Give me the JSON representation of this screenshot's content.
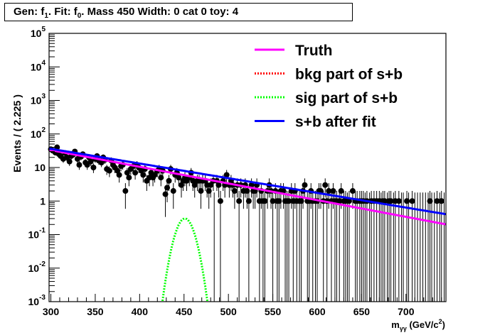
{
  "title": {
    "gen_label": "Gen: f",
    "gen_sub": "1",
    "fit_label": ". Fit: f",
    "fit_sub": "0",
    "rest": ". Mass 450  Width: 0 cat 0  toy: 4"
  },
  "chart_data": {
    "type": "scatter",
    "xlabel_main": "m",
    "xlabel_sub": "γγ",
    "xlabel_unit": " (GeV/c",
    "xlabel_sup": "2",
    "xlabel_close": ")",
    "ylabel": "Events / ( 2.225 )",
    "xlim": [
      298,
      745
    ],
    "ylim": [
      0.001,
      100000
    ],
    "yscale": "log",
    "x_ticks": [
      "300",
      "350",
      "400",
      "450",
      "500",
      "550",
      "600",
      "650",
      "700"
    ],
    "y_ticks": [
      {
        "base": "10",
        "exp": "5"
      },
      {
        "base": "10",
        "exp": "4"
      },
      {
        "base": "10",
        "exp": "3"
      },
      {
        "base": "10",
        "exp": "2"
      },
      {
        "base": "10",
        "exp": ""
      },
      {
        "base": "1",
        "exp": ""
      },
      {
        "base": "10",
        "exp": "-1"
      },
      {
        "base": "10",
        "exp": "-2"
      },
      {
        "base": "10",
        "exp": "-3"
      }
    ],
    "legend_position": "top-right",
    "legend": [
      {
        "label": "Truth",
        "color": "#ff00ff",
        "style": "solid"
      },
      {
        "label": "bkg part of s+b",
        "color": "#ff0000",
        "style": "dotted"
      },
      {
        "label": "sig part of s+b",
        "color": "#00ff00",
        "style": "dotted"
      },
      {
        "label": "s+b after fit",
        "color": "#0000ff",
        "style": "solid"
      }
    ],
    "data_points": [
      [
        300,
        35
      ],
      [
        302,
        32
      ],
      [
        305,
        28
      ],
      [
        307,
        40
      ],
      [
        309,
        25
      ],
      [
        311,
        22
      ],
      [
        314,
        18
      ],
      [
        316,
        27
      ],
      [
        318,
        20
      ],
      [
        321,
        15
      ],
      [
        323,
        22
      ],
      [
        325,
        24
      ],
      [
        327,
        30
      ],
      [
        330,
        18
      ],
      [
        332,
        12
      ],
      [
        334,
        21
      ],
      [
        336,
        25
      ],
      [
        339,
        14
      ],
      [
        341,
        12
      ],
      [
        343,
        20
      ],
      [
        345,
        15
      ],
      [
        348,
        10
      ],
      [
        350,
        18
      ],
      [
        352,
        22
      ],
      [
        354,
        16
      ],
      [
        357,
        14
      ],
      [
        359,
        20
      ],
      [
        361,
        17
      ],
      [
        363,
        9
      ],
      [
        366,
        8
      ],
      [
        368,
        16
      ],
      [
        370,
        12
      ],
      [
        372,
        10
      ],
      [
        375,
        8
      ],
      [
        377,
        6
      ],
      [
        379,
        11
      ],
      [
        381,
        12
      ],
      [
        384,
        2
      ],
      [
        386,
        7
      ],
      [
        388,
        5
      ],
      [
        390,
        9
      ],
      [
        393,
        11
      ],
      [
        395,
        7
      ],
      [
        397,
        12
      ],
      [
        399,
        10
      ],
      [
        402,
        8
      ],
      [
        404,
        6
      ],
      [
        406,
        9
      ],
      [
        408,
        4
      ],
      [
        411,
        5
      ],
      [
        413,
        7
      ],
      [
        415,
        5
      ],
      [
        417,
        6
      ],
      [
        420,
        8
      ],
      [
        422,
        9
      ],
      [
        424,
        5
      ],
      [
        426,
        8
      ],
      [
        429,
        1.6
      ],
      [
        431,
        2.5
      ],
      [
        433,
        4
      ],
      [
        435,
        9
      ],
      [
        438,
        2
      ],
      [
        440,
        6
      ],
      [
        442,
        7
      ],
      [
        444,
        5
      ],
      [
        447,
        3
      ],
      [
        449,
        4
      ],
      [
        451,
        5
      ],
      [
        453,
        4
      ],
      [
        456,
        5
      ],
      [
        458,
        7
      ],
      [
        460,
        4
      ],
      [
        462,
        3
      ],
      [
        465,
        4
      ],
      [
        467,
        4
      ],
      [
        469,
        2
      ],
      [
        471,
        4
      ],
      [
        474,
        4
      ],
      [
        476,
        3
      ],
      [
        478,
        2
      ],
      [
        480,
        3
      ],
      [
        483,
        4
      ],
      [
        487,
        4
      ],
      [
        489,
        3
      ],
      [
        491,
        1
      ],
      [
        494,
        4
      ],
      [
        496,
        3
      ],
      [
        498,
        6
      ],
      [
        501,
        3
      ],
      [
        503,
        4
      ],
      [
        505,
        3
      ],
      [
        507,
        2
      ],
      [
        510,
        3
      ],
      [
        512,
        1
      ],
      [
        514,
        3
      ],
      [
        517,
        2
      ],
      [
        519,
        3
      ],
      [
        521,
        2
      ],
      [
        523,
        1
      ],
      [
        526,
        3
      ],
      [
        528,
        2
      ],
      [
        530,
        2
      ],
      [
        532,
        3
      ],
      [
        535,
        1
      ],
      [
        537,
        2
      ],
      [
        539,
        1
      ],
      [
        541,
        1
      ],
      [
        544,
        2
      ],
      [
        546,
        3
      ],
      [
        548,
        2
      ],
      [
        550,
        1
      ],
      [
        553,
        2
      ],
      [
        555,
        1
      ],
      [
        557,
        1
      ],
      [
        559,
        2
      ],
      [
        562,
        2
      ],
      [
        564,
        1
      ],
      [
        566,
        1
      ],
      [
        568,
        1
      ],
      [
        571,
        2
      ],
      [
        573,
        1
      ],
      [
        575,
        2
      ],
      [
        577,
        1
      ],
      [
        580,
        1
      ],
      [
        582,
        1
      ],
      [
        584,
        2
      ],
      [
        586,
        3
      ],
      [
        589,
        1
      ],
      [
        591,
        1
      ],
      [
        593,
        2
      ],
      [
        595,
        1
      ],
      [
        598,
        1
      ],
      [
        600,
        1
      ],
      [
        602,
        2
      ],
      [
        604,
        2
      ],
      [
        607,
        1
      ],
      [
        609,
        3
      ],
      [
        611,
        1
      ],
      [
        613,
        2
      ],
      [
        616,
        1
      ],
      [
        618,
        2
      ],
      [
        620,
        1
      ],
      [
        622,
        1
      ],
      [
        625,
        1
      ],
      [
        627,
        2
      ],
      [
        630,
        1
      ],
      [
        632,
        1
      ],
      [
        636,
        1
      ],
      [
        640,
        2
      ],
      [
        643,
        1
      ],
      [
        645,
        1
      ],
      [
        648,
        1
      ],
      [
        650,
        1
      ],
      [
        652,
        1
      ],
      [
        656,
        1
      ],
      [
        661,
        1
      ],
      [
        664,
        1
      ],
      [
        667,
        1
      ],
      [
        670,
        1
      ],
      [
        674,
        1
      ],
      [
        676,
        1
      ],
      [
        681,
        1
      ],
      [
        683,
        1
      ],
      [
        688,
        1
      ],
      [
        692,
        1
      ],
      [
        701,
        1
      ],
      [
        707,
        1
      ],
      [
        727,
        1
      ],
      [
        735,
        1
      ],
      [
        740,
        1
      ]
    ],
    "zero_bins": [
      484,
      634,
      654,
      659,
      672,
      679,
      686,
      695,
      697,
      703,
      710,
      713,
      716,
      719,
      722,
      725,
      729,
      732,
      738,
      743
    ],
    "series": [
      {
        "name": "Truth",
        "model": "exp",
        "a": 33,
        "b": 0.01145,
        "x0": 300,
        "range": [
          298,
          745
        ],
        "color": "#ff00ff"
      },
      {
        "name": "s+b after fit",
        "model": "exp",
        "a": 36,
        "b": 0.01008,
        "x0": 300,
        "range": [
          298,
          745
        ],
        "color": "#0000ff"
      },
      {
        "name": "sig part of s+b",
        "model": "gauss",
        "peak": 0.3,
        "mu": 451,
        "sigma": 7.5,
        "range": [
          412,
          490
        ],
        "color": "#00ff00"
      }
    ]
  }
}
